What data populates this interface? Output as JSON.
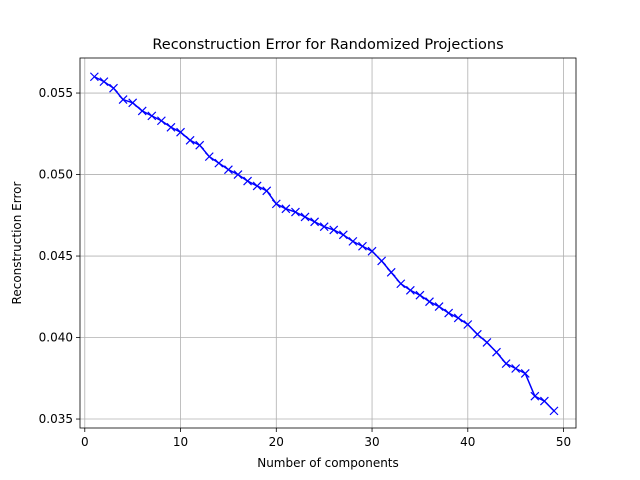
{
  "chart_data": {
    "type": "line",
    "title": "Reconstruction Error for Randomized Projections",
    "xlabel": "Number of components",
    "ylabel": "Reconstruction Error",
    "xlim": [
      -0.5,
      51.3
    ],
    "ylim": [
      0.03445,
      0.05715
    ],
    "xticks": [
      0,
      10,
      20,
      30,
      40,
      50
    ],
    "xtick_labels": [
      "0",
      "10",
      "20",
      "30",
      "40",
      "50"
    ],
    "yticks": [
      0.035,
      0.04,
      0.045,
      0.05,
      0.055
    ],
    "ytick_labels": [
      "0.035",
      "0.040",
      "0.045",
      "0.050",
      "0.055"
    ],
    "grid": true,
    "series": [
      {
        "color": "#0000ff",
        "marker": "x",
        "x": [
          1,
          2,
          3,
          4,
          5,
          6,
          7,
          8,
          9,
          10,
          11,
          12,
          13,
          14,
          15,
          16,
          17,
          18,
          19,
          20,
          21,
          22,
          23,
          24,
          25,
          26,
          27,
          28,
          29,
          30,
          31,
          32,
          33,
          34,
          35,
          36,
          37,
          38,
          39,
          40,
          41,
          42,
          43,
          44,
          45,
          46,
          47,
          48,
          49
        ],
        "y": [
          0.056,
          0.0557,
          0.0553,
          0.0546,
          0.0544,
          0.0539,
          0.0536,
          0.0533,
          0.0529,
          0.0526,
          0.0521,
          0.0518,
          0.0511,
          0.0507,
          0.0503,
          0.05,
          0.0496,
          0.0493,
          0.049,
          0.0482,
          0.0479,
          0.0477,
          0.0474,
          0.0471,
          0.0468,
          0.0466,
          0.0463,
          0.0459,
          0.0456,
          0.0453,
          0.0447,
          0.044,
          0.0433,
          0.0429,
          0.0426,
          0.0422,
          0.0419,
          0.0415,
          0.0412,
          0.0408,
          0.0402,
          0.0397,
          0.0391,
          0.0384,
          0.0381,
          0.0378,
          0.0364,
          0.0361,
          0.0355
        ]
      }
    ]
  }
}
